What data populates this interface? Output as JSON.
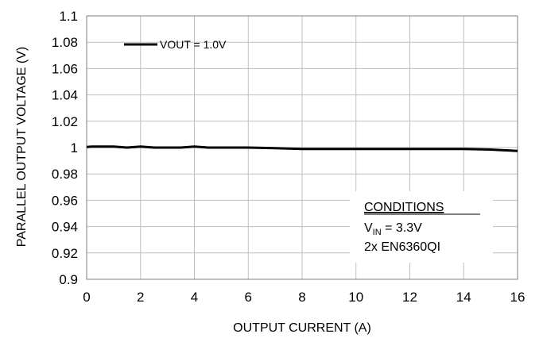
{
  "chart_data": {
    "type": "line",
    "title": "",
    "xlabel": "OUTPUT CURRENT (A)",
    "ylabel": "PARALLEL OUTPUT VOLTAGE (V)",
    "xlim": [
      0,
      16
    ],
    "ylim": [
      0.9,
      1.1
    ],
    "x_ticks": [
      0,
      2,
      4,
      6,
      8,
      10,
      12,
      14,
      16
    ],
    "x_tick_labels": [
      "0",
      "2",
      "4",
      "6",
      "8",
      "10",
      "12",
      "14",
      "16"
    ],
    "y_ticks": [
      0.9,
      0.92,
      0.94,
      0.96,
      0.98,
      1.0,
      1.02,
      1.04,
      1.06,
      1.08,
      1.1
    ],
    "y_tick_labels": [
      "0.9",
      "0.92",
      "0.94",
      "0.96",
      "0.98",
      "1",
      "1.02",
      "1.04",
      "1.06",
      "1.08",
      "1.1"
    ],
    "grid": true,
    "legend_position": "top-left",
    "series": [
      {
        "name": "VOUT = 1.0V",
        "color": "#000000",
        "x": [
          0,
          0.2,
          0.5,
          1,
          1.5,
          2,
          2.5,
          3,
          3.5,
          4,
          4.5,
          5,
          6,
          7,
          8,
          9,
          10,
          11,
          12,
          13,
          14,
          15,
          16
        ],
        "y": [
          1.0005,
          1.0008,
          1.0008,
          1.0008,
          1.0,
          1.0008,
          1.0,
          1.0,
          1.0,
          1.0008,
          1.0,
          1.0,
          1.0,
          0.9995,
          0.999,
          0.999,
          0.999,
          0.999,
          0.999,
          0.999,
          0.999,
          0.9985,
          0.9975
        ]
      }
    ],
    "annotation": {
      "heading": "CONDITIONS",
      "vin_symbol": "V",
      "vin_subscript": "IN",
      "vin_value": " = 3.3V",
      "device": "2x EN6360QI"
    }
  }
}
